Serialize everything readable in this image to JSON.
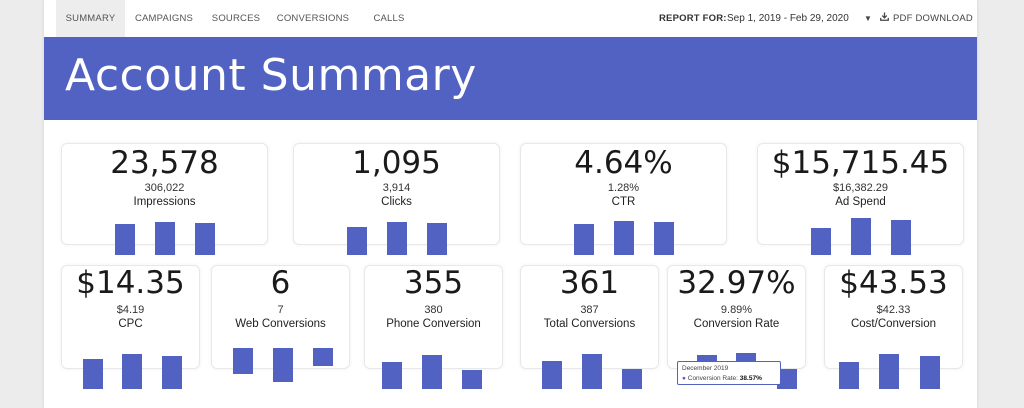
{
  "nav": {
    "tabs": [
      {
        "label": "SUMMARY",
        "active": true
      },
      {
        "label": "CAMPAIGNS",
        "active": false
      },
      {
        "label": "SOURCES",
        "active": false
      },
      {
        "label": "CONVERSIONS",
        "active": false
      },
      {
        "label": "CALLS",
        "active": false
      }
    ],
    "report_label": "REPORT FOR:",
    "date_range": "Sep 1, 2019 - Feb 29, 2020",
    "pdf_label": "PDF DOWNLOAD"
  },
  "banner": {
    "title": "Account Summary",
    "color": "#5162c2"
  },
  "metrics_top": [
    {
      "value": "23,578",
      "previous": "306,022",
      "label": "Impressions"
    },
    {
      "value": "1,095",
      "previous": "3,914",
      "label": "Clicks"
    },
    {
      "value": "4.64%",
      "previous": "1.28%",
      "label": "CTR"
    },
    {
      "value": "$15,715.45",
      "previous": "$16,382.29",
      "label": "Ad Spend"
    }
  ],
  "metrics_bottom": [
    {
      "value": "$14.35",
      "previous": "$4.19",
      "label": "CPC"
    },
    {
      "value": "6",
      "previous": "7",
      "label": "Web Conversions"
    },
    {
      "value": "355",
      "previous": "380",
      "label": "Phone Conversion"
    },
    {
      "value": "361",
      "previous": "387",
      "label": "Total Conversions"
    },
    {
      "value": "32.97%",
      "previous": "9.89%",
      "label": "Conversion Rate"
    },
    {
      "value": "$43.53",
      "previous": "$42.33",
      "label": "Cost/Conversion"
    }
  ],
  "tooltip": {
    "month": "December 2019",
    "series": "Conversion Rate:",
    "value": "38.57%"
  },
  "colors": {
    "accent": "#5162c2",
    "active_tab_bg": "#ededed"
  },
  "icons": {
    "dropdown": "caret-down-icon",
    "download": "download-icon"
  }
}
